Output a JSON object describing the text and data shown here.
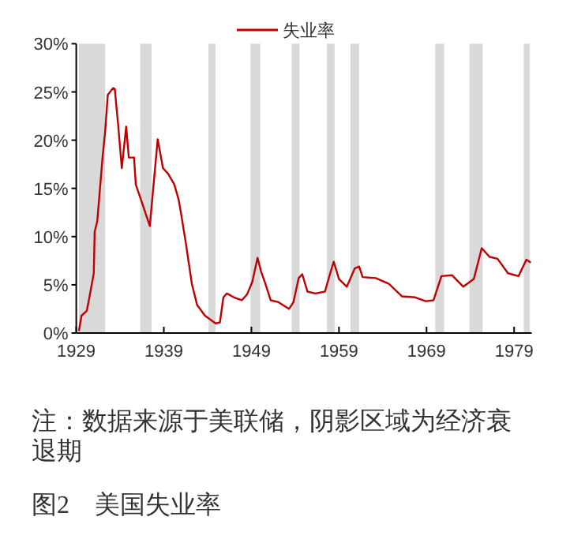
{
  "chart_data": {
    "type": "line",
    "title": "图2　美国失业率",
    "annotations": [
      "注：数据来源于美联储，阴影区域为经济衰退期"
    ],
    "x": [
      1929.3,
      1929.6,
      1930.2,
      1930.5,
      1931.0,
      1931.1,
      1931.4,
      1932.0,
      1932.3,
      1932.6,
      1933.2,
      1933.4,
      1933.8,
      1934.2,
      1934.7,
      1935.0,
      1935.6,
      1935.8,
      1936.4,
      1937.4,
      1938.3,
      1938.9,
      1939.5,
      1940.2,
      1940.7,
      1941.0,
      1941.5,
      1942.2,
      1942.8,
      1943.7,
      1944.9,
      1945.4,
      1945.8,
      1946.2,
      1947.0,
      1947.9,
      1948.5,
      1949.1,
      1949.7,
      1950.1,
      1950.6,
      1951.2,
      1952.1,
      1953.3,
      1953.8,
      1954.4,
      1954.8,
      1955.4,
      1956.3,
      1957.4,
      1958.0,
      1958.4,
      1959.0,
      1959.9,
      1960.8,
      1961.3,
      1961.7,
      1963.2,
      1964.7,
      1966.2,
      1967.7,
      1968.9,
      1969.8,
      1970.7,
      1971.9,
      1973.2,
      1974.4,
      1975.3,
      1976.2,
      1977.1,
      1978.3,
      1979.5,
      1980.4,
      1980.9
    ],
    "series": [
      {
        "name": "失业率",
        "color": "#c00000",
        "values": [
          0.2,
          1.8,
          2.3,
          3.7,
          6.2,
          10.5,
          11.6,
          18.2,
          20.9,
          24.7,
          25.4,
          25.3,
          21.4,
          17.1,
          21.4,
          18.2,
          18.2,
          15.4,
          13.8,
          11.1,
          20.1,
          17.1,
          16.5,
          15.4,
          13.8,
          12.2,
          9.4,
          5.1,
          2.9,
          1.8,
          1.0,
          1.1,
          3.7,
          4.1,
          3.7,
          3.4,
          4.0,
          5.3,
          7.8,
          6.4,
          5.1,
          3.4,
          3.2,
          2.5,
          3.2,
          5.7,
          6.1,
          4.3,
          4.1,
          4.3,
          6.2,
          7.4,
          5.6,
          4.8,
          6.7,
          6.9,
          5.8,
          5.7,
          5.1,
          3.8,
          3.7,
          3.3,
          3.4,
          5.9,
          6.0,
          4.8,
          5.6,
          8.8,
          7.9,
          7.7,
          6.2,
          5.9,
          7.6,
          7.3
        ]
      }
    ],
    "xlim": [
      1929,
      1981
    ],
    "xticks": [
      1929,
      1939,
      1949,
      1959,
      1969,
      1979
    ],
    "ylim": [
      0,
      30
    ],
    "yticks": [
      {
        "value": 0,
        "label": "0%"
      },
      {
        "value": 5,
        "label": "5%"
      },
      {
        "value": 10,
        "label": "10%"
      },
      {
        "value": 15,
        "label": "15%"
      },
      {
        "value": 20,
        "label": "20%"
      },
      {
        "value": 25,
        "label": "25%"
      },
      {
        "value": 30,
        "label": "30%"
      }
    ],
    "bands": [
      {
        "axis": "x",
        "from": 1929.3,
        "to": 1932.3,
        "color": "#d9d9d9"
      },
      {
        "axis": "x",
        "from": 1936.3,
        "to": 1937.6,
        "color": "#d9d9d9"
      },
      {
        "axis": "x",
        "from": 1944.1,
        "to": 1944.9,
        "color": "#d9d9d9"
      },
      {
        "axis": "x",
        "from": 1948.9,
        "to": 1950.0,
        "color": "#d9d9d9"
      },
      {
        "axis": "x",
        "from": 1953.6,
        "to": 1954.5,
        "color": "#d9d9d9"
      },
      {
        "axis": "x",
        "from": 1957.6,
        "to": 1958.5,
        "color": "#d9d9d9"
      },
      {
        "axis": "x",
        "from": 1960.3,
        "to": 1961.3,
        "color": "#d9d9d9"
      },
      {
        "axis": "x",
        "from": 1970.0,
        "to": 1971.0,
        "color": "#d9d9d9"
      },
      {
        "axis": "x",
        "from": 1973.9,
        "to": 1975.4,
        "color": "#d9d9d9"
      },
      {
        "axis": "x",
        "from": 1980.1,
        "to": 1980.8,
        "color": "#d9d9d9"
      }
    ],
    "legend": "top",
    "grid": false,
    "line_style": "solid"
  }
}
